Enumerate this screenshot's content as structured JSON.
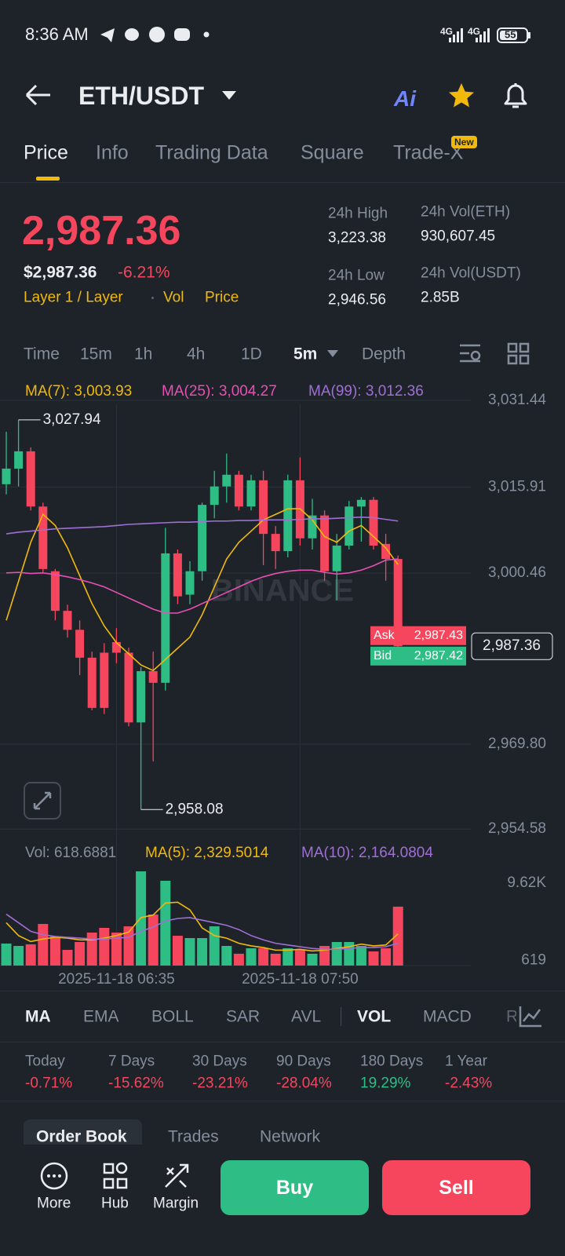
{
  "status_bar": {
    "time": "8:36 AM",
    "network_1": "4G",
    "network_2": "4G",
    "battery": "55"
  },
  "header": {
    "pair": "ETH/USDT",
    "ai": "Ai"
  },
  "tabs": {
    "items": [
      "Price",
      "Info",
      "Trading Data",
      "Square",
      "Trade-X"
    ],
    "badge": "New"
  },
  "price": {
    "last": "2,987.36",
    "usd": "$2,987.36",
    "change": "-6.21%",
    "tags": [
      "Layer 1 / Layer",
      "Vol",
      "Price"
    ]
  },
  "stats": [
    {
      "label": "24h High",
      "value": "3,223.38"
    },
    {
      "label": "24h Vol(ETH)",
      "value": "930,607.45"
    },
    {
      "label": "24h Low",
      "value": "2,946.56"
    },
    {
      "label": "24h Vol(USDT)",
      "value": "2.85B"
    }
  ],
  "intervals": [
    "Time",
    "15m",
    "1h",
    "4h",
    "1D",
    "5m",
    "Depth"
  ],
  "chart_data": [
    {
      "type": "candlestick",
      "watermark": "BINANCE",
      "grid": true,
      "up_color": "#2ebd85",
      "down_color": "#f6465d",
      "ylim": [
        2952.63,
        3034.25
      ],
      "yticks": [
        {
          "value": 3031.44,
          "label": "3,031.44"
        },
        {
          "value": 3015.91,
          "label": "3,015.91"
        },
        {
          "value": 3000.46,
          "label": "3,000.46"
        },
        {
          "value": 2969.8,
          "label": "2,969.80"
        },
        {
          "value": 2954.58,
          "label": "2,954.58"
        }
      ],
      "open": [
        3016.4,
        3019.2,
        3022.3,
        3012.4,
        3000.8,
        2993.7,
        2990.3,
        2985.3,
        2986.2,
        2988.1,
        2986.2,
        2973.7,
        2982.9,
        2980.8,
        3004.0,
        2996.6,
        3000.8,
        3012.7,
        3016.0,
        3018.1,
        3012.4,
        3017.1,
        3007.5,
        3004.4,
        3017.1,
        3006.7,
        3010.8,
        3000.8,
        3005.4,
        3012.4,
        3013.6,
        3005.7,
        3003.0
      ],
      "high": [
        3025.8,
        3027.94,
        3023.0,
        3013.1,
        3001.2,
        2994.8,
        2992.0,
        2986.4,
        2987.9,
        2990.6,
        2987.1,
        2983.6,
        2986.4,
        3008.6,
        3004.7,
        3002.6,
        3013.1,
        3018.8,
        3021.9,
        3018.8,
        3018.1,
        3018.8,
        3008.9,
        3018.1,
        3021.2,
        3013.8,
        3011.7,
        3007.5,
        3013.4,
        3014.1,
        3014.1,
        3007.5,
        3003.6
      ],
      "low": [
        3014.6,
        3016.0,
        3011.7,
        3000.5,
        2992.0,
        2988.9,
        2982.2,
        2975.9,
        2975.2,
        2984.3,
        2973.0,
        2958.08,
        2966.7,
        2979.4,
        2994.9,
        2994.9,
        2999.1,
        3010.3,
        3013.1,
        3011.7,
        3011.7,
        3001.9,
        3001.2,
        3003.3,
        3005.4,
        3004.7,
        2999.1,
        2995.6,
        3004.7,
        3006.1,
        3004.7,
        2999.1,
        2985.0
      ],
      "close": [
        3019.2,
        3022.3,
        3012.4,
        3001.2,
        2993.7,
        2990.3,
        2985.3,
        2976.3,
        2976.3,
        2986.2,
        2973.7,
        2982.9,
        2980.8,
        3004.0,
        2996.3,
        3000.8,
        3012.7,
        3016.0,
        3018.1,
        3012.4,
        3017.1,
        3007.5,
        3004.4,
        3017.1,
        3006.7,
        3010.8,
        3000.8,
        3005.4,
        3012.4,
        3013.6,
        3005.4,
        3003.0,
        2987.36
      ],
      "series": [
        {
          "name": "MA(7): 3,003.93",
          "color": "#f0b90b",
          "values": [
            2992,
            2999,
            3006,
            3011,
            3009,
            3005,
            3000,
            2995,
            2991,
            2988,
            2986,
            2984,
            2983,
            2985,
            2987,
            2989,
            2993,
            2998,
            3003,
            3006,
            3008,
            3010,
            3011,
            3012,
            3012,
            3010,
            3007,
            3006,
            3008,
            3009,
            3007,
            3005,
            3002
          ]
        },
        {
          "name": "MA(25): 3,004.27",
          "color": "#e84fb4",
          "values": [
            3000.5,
            3000.6,
            3000.4,
            3000.5,
            3000.2,
            2999.8,
            2999.3,
            2998.7,
            2998,
            2997,
            2996,
            2995,
            2994,
            2993.3,
            2993.3,
            2994,
            2995,
            2996,
            2997,
            2998,
            2999,
            2999.8,
            3000.4,
            3000.8,
            3001,
            3001,
            3000.6,
            3000.3,
            3000.5,
            3001,
            3001.8,
            3002.8,
            3003
          ]
        },
        {
          "name": "MA(99): 3,012.36",
          "color": "#9f6fd6",
          "values": [
            3007.5,
            3007.8,
            3008,
            3008.2,
            3008.4,
            3008.5,
            3008.6,
            3008.7,
            3008.8,
            3009,
            3009.2,
            3009.3,
            3009.4,
            3009.5,
            3009.6,
            3009.6,
            3009.7,
            3009.8,
            3009.8,
            3009.9,
            3009.9,
            3010,
            3010,
            3010,
            3010.1,
            3010.2,
            3010.2,
            3010.3,
            3010.4,
            3010.5,
            3010.4,
            3010.1,
            3009.8
          ]
        }
      ],
      "annotations": [
        {
          "text": "3,027.94",
          "value": 3027.94
        },
        {
          "text": "2,958.08",
          "value": 2958.08
        }
      ],
      "ask": {
        "text": "Ask",
        "value": 2987.43,
        "label": "2,987.43"
      },
      "bid": {
        "text": "Bid",
        "value": 2987.42,
        "label": "2,987.42"
      },
      "last_price": {
        "value": 2987.36,
        "label": "2,987.36"
      }
    },
    {
      "type": "bar",
      "label": "Vol: 618.6881",
      "grid": false,
      "up_color": "#2ebd85",
      "down_color": "#f6465d",
      "categories": [
        null,
        null,
        null,
        null,
        null,
        null,
        null,
        null,
        null,
        "2025-11-18 06:35",
        null,
        null,
        null,
        null,
        null,
        null,
        null,
        null,
        null,
        null,
        null,
        null,
        null,
        null,
        "2025-11-18 07:50",
        null,
        null,
        null,
        null,
        null,
        null,
        null,
        null
      ],
      "values": [
        2570,
        2290,
        2480,
        4860,
        3390,
        1830,
        2750,
        3850,
        4400,
        3850,
        4580,
        11000,
        5960,
        9900,
        3480,
        3210,
        3210,
        4580,
        2290,
        1380,
        2020,
        2020,
        1380,
        2020,
        1830,
        1380,
        2290,
        2750,
        2750,
        2290,
        1650,
        2020,
        6880
      ],
      "ylim": [
        0,
        11000
      ],
      "yticks": [
        {
          "value": 9620,
          "label": "9.62K"
        },
        619
      ],
      "series": [
        {
          "name": "MA(5): 2,329.5014",
          "color": "#f0b90b",
          "values": [
            5000,
            3500,
            2800,
            3100,
            3300,
            3200,
            3000,
            3000,
            3200,
            3500,
            3900,
            5600,
            5900,
            7300,
            7400,
            6500,
            4400,
            3500,
            3200,
            2600,
            2300,
            2100,
            1800,
            1800,
            1900,
            1700,
            1800,
            2000,
            2200,
            2500,
            2300,
            2400,
            3700
          ]
        },
        {
          "name": "MA(10): 2,164.0804",
          "color": "#9f6fd6",
          "values": [
            6000,
            5000,
            4000,
            3600,
            3400,
            3300,
            3200,
            3100,
            3100,
            3200,
            3300,
            4000,
            4500,
            5200,
            5500,
            5600,
            5300,
            5000,
            4700,
            4200,
            3500,
            3000,
            2600,
            2400,
            2200,
            2000,
            1900,
            1900,
            2000,
            2100,
            2100,
            2200,
            2600
          ]
        }
      ]
    }
  ],
  "indicators": [
    "MA",
    "EMA",
    "BOLL",
    "SAR",
    "AVL",
    "VOL",
    "MACD",
    "RSI"
  ],
  "performance": [
    {
      "label": "Today",
      "value": "-0.71%"
    },
    {
      "label": "7 Days",
      "value": "-15.62%"
    },
    {
      "label": "30 Days",
      "value": "-23.21%"
    },
    {
      "label": "90 Days",
      "value": "-28.04%"
    },
    {
      "label": "180 Days",
      "value": "19.29%"
    },
    {
      "label": "1 Year",
      "value": "-2.43%"
    }
  ],
  "book_tabs": [
    "Order Book",
    "Trades",
    "Network"
  ],
  "nav": [
    "More",
    "Hub",
    "Margin"
  ],
  "actions": {
    "buy": "Buy",
    "sell": "Sell"
  }
}
